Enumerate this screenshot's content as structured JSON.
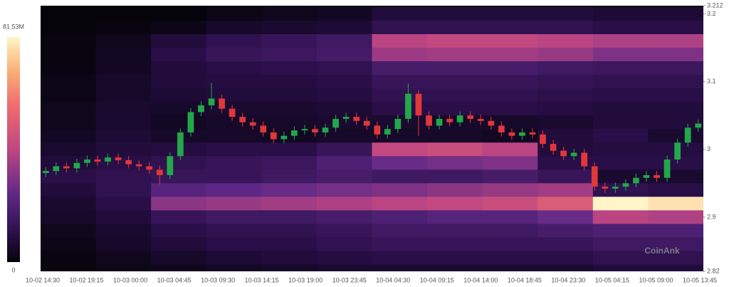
{
  "chart_data": {
    "type": "heatmap-candlestick",
    "watermark": "CoinAnk",
    "x_labels": [
      "10-02 14:30",
      "10-02 19:15",
      "10-03 00:00",
      "10-03 04:45",
      "10-03 09:30",
      "10-03 14:15",
      "10-03 19:00",
      "10-03 23:45",
      "10-04 04:30",
      "10-04 09:15",
      "10-04 14:00",
      "10-04 18:45",
      "10-04 23:30",
      "10-05 04:15",
      "10-05 09:00",
      "10-05 13:45"
    ],
    "ylim": [
      2.82,
      3.212
    ],
    "yticks": [
      3.212,
      3.2,
      3.1,
      3,
      2.9,
      2.82
    ],
    "colorbar_ticks": [
      0,
      {
        "value": 81.53,
        "label": "81.53M"
      }
    ],
    "heatmap": {
      "levels": [
        3.2,
        3.18,
        3.16,
        3.14,
        3.12,
        3.1,
        3.08,
        3.06,
        3.04,
        3.02,
        3,
        2.98,
        2.96,
        2.94,
        2.92,
        2.9,
        2.88,
        2.86,
        2.84,
        2.82
      ],
      "values": [
        [
          0,
          0,
          0,
          2,
          3,
          4,
          8,
          8,
          8,
          8,
          7,
          7
        ],
        [
          0,
          1,
          2,
          5,
          6,
          7,
          12,
          12,
          12,
          12,
          10,
          10
        ],
        [
          1,
          3,
          8,
          12,
          14,
          16,
          40,
          42,
          42,
          40,
          38,
          38
        ],
        [
          1,
          4,
          10,
          14,
          15,
          17,
          35,
          36,
          36,
          34,
          30,
          30
        ],
        [
          1,
          4,
          8,
          10,
          11,
          12,
          18,
          18,
          18,
          16,
          15,
          15
        ],
        [
          2,
          5,
          8,
          9,
          9,
          10,
          14,
          14,
          14,
          13,
          12,
          12
        ],
        [
          2,
          5,
          7,
          8,
          8,
          9,
          12,
          12,
          12,
          11,
          10,
          10
        ],
        [
          3,
          6,
          5,
          6,
          6,
          7,
          10,
          10,
          10,
          9,
          8,
          8
        ],
        [
          3,
          6,
          4,
          5,
          5,
          6,
          6,
          5,
          5,
          6,
          8,
          8
        ],
        [
          4,
          7,
          5,
          5,
          4,
          5,
          5,
          5,
          4,
          8,
          10,
          6
        ],
        [
          6,
          8,
          9,
          10,
          10,
          14,
          42,
          44,
          40,
          8,
          9,
          9
        ],
        [
          8,
          10,
          12,
          14,
          15,
          20,
          26,
          28,
          30,
          10,
          10,
          10
        ],
        [
          10,
          12,
          14,
          14,
          16,
          18,
          16,
          16,
          18,
          14,
          6,
          6
        ],
        [
          8,
          12,
          22,
          24,
          26,
          28,
          30,
          32,
          34,
          36,
          12,
          10
        ],
        [
          6,
          10,
          32,
          34,
          36,
          38,
          40,
          42,
          44,
          50,
          81.53,
          78
        ],
        [
          5,
          8,
          14,
          16,
          16,
          18,
          20,
          22,
          22,
          26,
          40,
          38
        ],
        [
          3,
          6,
          10,
          12,
          12,
          14,
          16,
          16,
          16,
          18,
          20,
          20
        ],
        [
          2,
          5,
          8,
          10,
          10,
          12,
          14,
          14,
          14,
          14,
          16,
          16
        ],
        [
          1,
          3,
          5,
          7,
          8,
          9,
          10,
          10,
          10,
          10,
          12,
          12
        ],
        [
          1,
          2,
          3,
          4,
          5,
          6,
          6,
          6,
          6,
          6,
          8,
          8
        ]
      ]
    },
    "candles": {
      "up_color": "#22a84a",
      "down_color": "#e0383a",
      "open": [
        2.965,
        2.968,
        2.975,
        2.972,
        2.98,
        2.985,
        2.982,
        2.988,
        2.984,
        2.978,
        2.975,
        2.97,
        2.962,
        2.99,
        3.025,
        3.055,
        3.065,
        3.075,
        3.06,
        3.048,
        3.04,
        3.035,
        3.025,
        3.015,
        3.02,
        3.028,
        3.03,
        3.025,
        3.032,
        3.045,
        3.048,
        3.042,
        3.035,
        3.022,
        3.03,
        3.045,
        3.082,
        3.05,
        3.035,
        3.045,
        3.04,
        3.05,
        3.045,
        3.042,
        3.035,
        3.025,
        3.02,
        3.025,
        3.022,
        3.008,
        2.998,
        2.99,
        2.995,
        2.975,
        2.945,
        2.942,
        2.945,
        2.95,
        2.958,
        2.962,
        2.958,
        2.985,
        3.01,
        3.032
      ],
      "high": [
        2.974,
        2.981,
        2.981,
        2.986,
        2.991,
        2.991,
        2.994,
        2.994,
        2.99,
        2.984,
        2.981,
        2.976,
        2.996,
        3.031,
        3.061,
        3.071,
        3.098,
        3.081,
        3.066,
        3.054,
        3.046,
        3.041,
        3.031,
        3.026,
        3.034,
        3.036,
        3.036,
        3.038,
        3.051,
        3.054,
        3.054,
        3.048,
        3.041,
        3.036,
        3.051,
        3.097,
        3.088,
        3.056,
        3.051,
        3.051,
        3.056,
        3.056,
        3.051,
        3.048,
        3.041,
        3.031,
        3.031,
        3.031,
        3.028,
        3.014,
        3.004,
        3.001,
        3.001,
        2.981,
        2.951,
        2.951,
        2.956,
        2.964,
        2.968,
        2.968,
        2.991,
        3.016,
        3.038,
        3.044
      ],
      "low": [
        2.959,
        2.962,
        2.966,
        2.966,
        2.974,
        2.976,
        2.976,
        2.978,
        2.972,
        2.969,
        2.964,
        2.948,
        2.956,
        2.984,
        3.019,
        3.049,
        3.059,
        3.054,
        3.042,
        3.034,
        3.029,
        3.019,
        3.009,
        3.009,
        3.014,
        3.022,
        3.019,
        3.019,
        3.026,
        3.039,
        3.036,
        3.029,
        3.016,
        3.016,
        3.024,
        3.039,
        3.02,
        3.029,
        3.029,
        3.034,
        3.034,
        3.039,
        3.036,
        3.029,
        3.019,
        3.014,
        3.014,
        3.016,
        3.002,
        2.992,
        2.984,
        2.984,
        2.969,
        2.939,
        2.936,
        2.936,
        2.939,
        2.944,
        2.952,
        2.952,
        2.952,
        2.979,
        3.004,
        3.026
      ],
      "close": [
        2.968,
        2.975,
        2.972,
        2.98,
        2.985,
        2.982,
        2.988,
        2.984,
        2.978,
        2.975,
        2.97,
        2.962,
        2.99,
        3.025,
        3.055,
        3.065,
        3.075,
        3.06,
        3.048,
        3.04,
        3.035,
        3.025,
        3.015,
        3.02,
        3.028,
        3.03,
        3.025,
        3.032,
        3.045,
        3.048,
        3.042,
        3.035,
        3.022,
        3.03,
        3.045,
        3.082,
        3.05,
        3.035,
        3.045,
        3.04,
        3.05,
        3.045,
        3.042,
        3.035,
        3.025,
        3.02,
        3.025,
        3.022,
        3.008,
        2.998,
        2.99,
        2.995,
        2.975,
        2.945,
        2.942,
        2.945,
        2.95,
        2.958,
        2.962,
        2.958,
        2.985,
        3.01,
        3.032,
        3.038
      ]
    }
  }
}
